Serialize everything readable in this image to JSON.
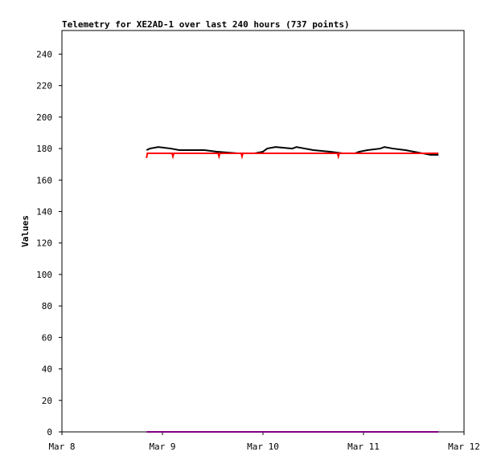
{
  "chart_data": {
    "type": "line",
    "title": "Telemetry for XE2AD-1 over last 240 hours (737 points)",
    "ylabel": "Values",
    "xlim": [
      0,
      96
    ],
    "xticks": [
      {
        "value": 0,
        "label": "Mar 8"
      },
      {
        "value": 24,
        "label": "Mar 9"
      },
      {
        "value": 48,
        "label": "Mar 10"
      },
      {
        "value": 72,
        "label": "Mar 11"
      },
      {
        "value": 96,
        "label": "Mar 12"
      }
    ],
    "ylim": [
      0,
      255
    ],
    "yticks": [
      0,
      20,
      40,
      60,
      80,
      100,
      120,
      140,
      160,
      180,
      200,
      220,
      240
    ],
    "series": [
      {
        "color": "#000000",
        "x": [
          20.2,
          21,
          23,
          26,
          28,
          34,
          37,
          42,
          46,
          48,
          49,
          51,
          55,
          56,
          58,
          60,
          64,
          67,
          70,
          71,
          73,
          76,
          77,
          79,
          82,
          84,
          86,
          88,
          89.9
        ],
        "values": [
          179,
          180,
          181,
          180,
          179,
          179,
          178,
          177,
          177,
          178,
          180,
          181,
          180,
          181,
          180,
          179,
          178,
          177,
          177,
          178,
          179,
          180,
          181,
          180,
          179,
          178,
          177,
          176,
          176
        ]
      },
      {
        "color": "#ff0000",
        "x": [
          20.2,
          20.4,
          26.3,
          26.5,
          26.7,
          37.3,
          37.5,
          37.7,
          42.8,
          43,
          43.2,
          65.8,
          66,
          66.2,
          89.9
        ],
        "values": [
          174,
          177,
          177,
          175,
          177,
          177,
          175,
          177,
          177,
          175,
          177,
          177,
          175,
          177,
          177
        ]
      },
      {
        "color": "#800080",
        "x": [
          20.2,
          89.9
        ],
        "values": [
          0,
          0
        ]
      }
    ]
  }
}
